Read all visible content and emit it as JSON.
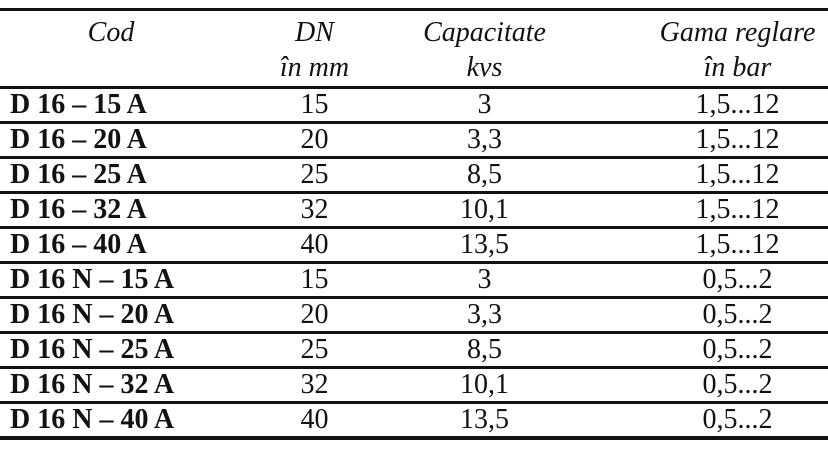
{
  "colors": {
    "background": "#ffffff",
    "text": "#121212",
    "border": "#121212"
  },
  "table": {
    "title": "valve-specification-table",
    "header": {
      "cod": {
        "line1": "Cod",
        "line2": ""
      },
      "dn": {
        "line1": "DN",
        "line2": "în mm"
      },
      "capacitate": {
        "line1": "Capacitate",
        "line2": "kvs"
      },
      "gama": {
        "line1": "Gama reglare",
        "line2": "în bar"
      }
    },
    "rows": [
      {
        "cod": "D 16 – 15 A",
        "dn": "15",
        "kvs": "3",
        "gama": "1,5...12"
      },
      {
        "cod": "D 16 – 20 A",
        "dn": "20",
        "kvs": "3,3",
        "gama": "1,5...12"
      },
      {
        "cod": "D 16 – 25 A",
        "dn": "25",
        "kvs": "8,5",
        "gama": "1,5...12"
      },
      {
        "cod": "D 16 – 32 A",
        "dn": "32",
        "kvs": "10,1",
        "gama": "1,5...12"
      },
      {
        "cod": "D 16 – 40 A",
        "dn": "40",
        "kvs": "13,5",
        "gama": "1,5...12"
      },
      {
        "cod": "D 16 N – 15 A",
        "dn": "15",
        "kvs": "3",
        "gama": "0,5...2"
      },
      {
        "cod": "D 16 N – 20 A",
        "dn": "20",
        "kvs": "3,3",
        "gama": "0,5...2"
      },
      {
        "cod": "D 16 N – 25 A",
        "dn": "25",
        "kvs": "8,5",
        "gama": "0,5...2"
      },
      {
        "cod": "D 16 N – 32 A",
        "dn": "32",
        "kvs": "10,1",
        "gama": "0,5...2"
      },
      {
        "cod": "D 16 N – 40 A",
        "dn": "40",
        "kvs": "13,5",
        "gama": "0,5...2"
      }
    ]
  }
}
